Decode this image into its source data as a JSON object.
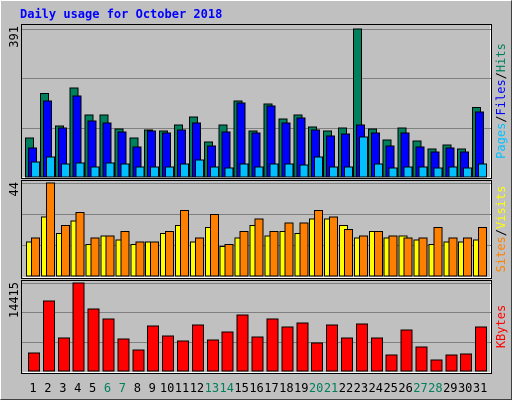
{
  "chart_data": {
    "type": "bar",
    "title": "Daily usage for October 2018",
    "separator": "/",
    "categories": [
      1,
      2,
      3,
      4,
      5,
      6,
      7,
      8,
      9,
      10,
      11,
      12,
      13,
      14,
      15,
      16,
      17,
      18,
      19,
      20,
      21,
      22,
      23,
      24,
      25,
      26,
      27,
      28,
      29,
      30,
      31
    ],
    "label_colors": [
      "#000000",
      "#000000",
      "#000000",
      "#000000",
      "#000000",
      "#00805c",
      "#00805c",
      "#000000",
      "#000000",
      "#000000",
      "#000000",
      "#000000",
      "#00805c",
      "#00805c",
      "#000000",
      "#000000",
      "#000000",
      "#000000",
      "#000000",
      "#00805c",
      "#00805c",
      "#000000",
      "#000000",
      "#000000",
      "#000000",
      "#000000",
      "#00805c",
      "#00805c",
      "#000000",
      "#000000",
      "#000000"
    ],
    "panels": [
      {
        "ylim": [
          0,
          391
        ],
        "yticks": [
          391
        ],
        "series": [
          {
            "name": "Hits",
            "color": "#00805c",
            "values": [
              103,
              220,
              135,
              235,
              164,
              164,
              127,
              103,
              124,
              122,
              138,
              159,
              93,
              138,
              201,
              122,
              193,
              153,
              164,
              132,
              122,
              130,
              391,
              127,
              98,
              130,
              95,
              74,
              85,
              74,
              183
            ]
          },
          {
            "name": "Files",
            "color": "#0000ff",
            "values": [
              77,
              201,
              130,
              214,
              148,
              143,
              119,
              79,
              122,
              116,
              124,
              143,
              82,
              119,
              196,
              116,
              188,
              143,
              156,
              124,
              108,
              114,
              138,
              116,
              82,
              116,
              79,
              66,
              77,
              66,
              172
            ]
          },
          {
            "name": "Pages",
            "color": "#00c0ff",
            "values": [
              40,
              53,
              34,
              37,
              26,
              37,
              34,
              26,
              26,
              26,
              34,
              45,
              26,
              24,
              34,
              26,
              34,
              34,
              32,
              53,
              26,
              26,
              106,
              34,
              24,
              26,
              26,
              24,
              26,
              24,
              34
            ]
          }
        ]
      },
      {
        "ylim": [
          0,
          44
        ],
        "yticks": [
          44
        ],
        "series": [
          {
            "name": "Visits",
            "color": "#ffff00",
            "values": [
              16,
              28,
              20,
              26,
              15,
              19,
              17,
              15,
              16,
              20,
              24,
              16,
              23,
              14,
              18,
              24,
              19,
              21,
              20,
              27,
              27,
              24,
              18,
              21,
              18,
              19,
              17,
              15,
              16,
              16,
              17
            ]
          },
          {
            "name": "Sites",
            "color": "#ff8000",
            "values": [
              18,
              44,
              24,
              30,
              18,
              19,
              21,
              16,
              16,
              21,
              31,
              18,
              29,
              15,
              21,
              27,
              21,
              25,
              25,
              31,
              28,
              22,
              19,
              21,
              19,
              18,
              18,
              23,
              18,
              18,
              23
            ]
          }
        ]
      },
      {
        "ylim": [
          0,
          14415
        ],
        "yticks": [
          14415
        ],
        "series": [
          {
            "name": "KBytes",
            "color": "#ff0000",
            "values": [
              2950,
              11470,
              5410,
              14415,
              10160,
              8520,
              5240,
              3440,
              7370,
              5730,
              4910,
              7540,
              5080,
              6390,
              9170,
              5570,
              8520,
              7210,
              7860,
              4590,
              7540,
              5410,
              7700,
              5410,
              2620,
              6720,
              3930,
              1800,
              2620,
              2790,
              7210
            ]
          }
        ]
      }
    ]
  }
}
